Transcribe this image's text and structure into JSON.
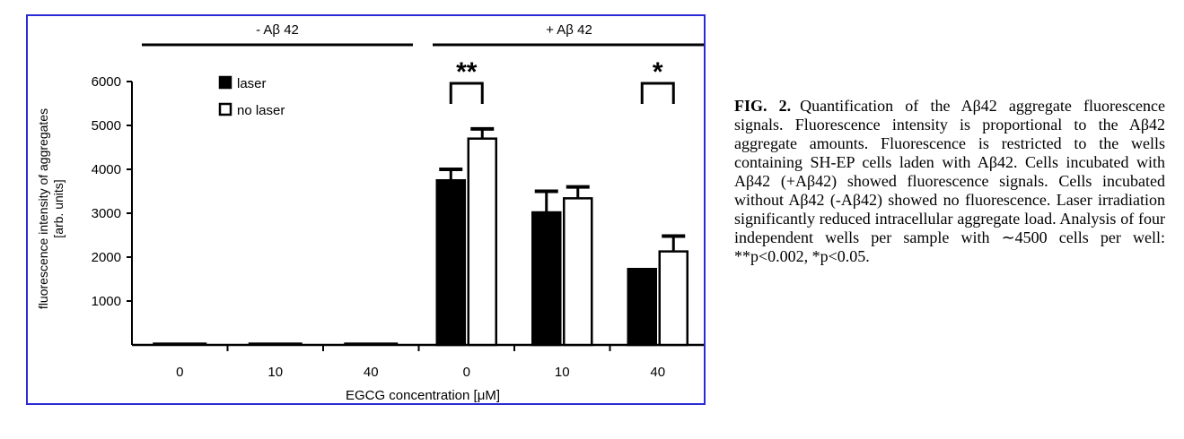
{
  "chart_data": {
    "type": "bar",
    "groups": [
      {
        "label": "- Aβ 42",
        "categories": [
          "0",
          "10",
          "40"
        ]
      },
      {
        "label": "+ Aβ 42",
        "categories": [
          "0",
          "10",
          "40"
        ]
      }
    ],
    "categories": [
      "0",
      "10",
      "40",
      "0",
      "10",
      "40"
    ],
    "series": [
      {
        "name": "laser",
        "color": "#000000",
        "values": [
          0,
          0,
          0,
          3750,
          3020,
          1730
        ],
        "errors": [
          0,
          0,
          0,
          250,
          480,
          0
        ]
      },
      {
        "name": "no laser",
        "color": "#ffffff",
        "values": [
          0,
          0,
          0,
          4700,
          3340,
          2130
        ],
        "errors": [
          0,
          0,
          0,
          220,
          260,
          350
        ]
      }
    ],
    "baseline_values": [
      55,
      55,
      55
    ],
    "xlabel": "EGCG concentration [μM]",
    "ylabel_lines": [
      "fluorescence intensity of aggregates",
      "[arb. units]"
    ],
    "ylim": [
      0,
      6000
    ],
    "yticks": [
      1000,
      2000,
      3000,
      4000,
      5000,
      6000
    ],
    "legend": {
      "placement": "top-left"
    },
    "significance": [
      {
        "text": "**",
        "category_index": 3
      },
      {
        "text": "*",
        "category_index": 5
      }
    ],
    "grid": false
  },
  "caption": {
    "label": "FIG. 2.",
    "text": "Quantification of the Aβ42 aggregate fluorescence signals. Fluorescence intensity is proportional to the Aβ42 aggregate amounts. Fluorescence is restricted to the wells containing SH-EP cells laden with Aβ42. Cells incubated with Aβ42 (+Aβ42) showed fluorescence signals. Cells incubated without Aβ42 (-Aβ42) showed no fluorescence. Laser irradiation significantly reduced intracellular aggregate load. Analysis of four independent wells per sample with ∼4500 cells per well: **p<0.002, *p<0.05."
  }
}
